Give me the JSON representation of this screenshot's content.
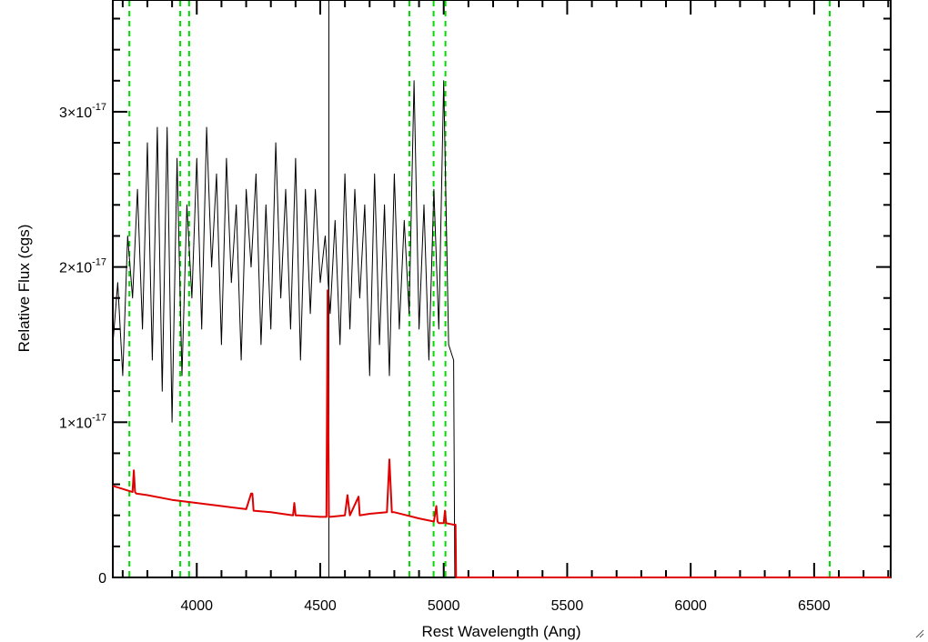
{
  "chart_data": {
    "type": "line",
    "xlabel": "Rest Wavelength (Ang)",
    "ylabel": "Relative Flux (cgs)",
    "xlim": [
      3660,
      6810
    ],
    "ylim": [
      0,
      3.72e-17
    ],
    "x_ticks": [
      4000,
      4500,
      5000,
      5500,
      6000,
      6500
    ],
    "x_tick_labels": [
      "4000",
      "4500",
      "5000",
      "5500",
      "6000",
      "6500"
    ],
    "y_ticks": [
      0,
      1e-17,
      2e-17,
      3e-17
    ],
    "y_tick_labels": [
      {
        "mantissa": "0",
        "exponent": ""
      },
      {
        "mantissa": "1×10",
        "exponent": "-17"
      },
      {
        "mantissa": "2×10",
        "exponent": "-17"
      },
      {
        "mantissa": "3×10",
        "exponent": "-17"
      }
    ],
    "grid": false,
    "series": [
      {
        "color": "#000000",
        "style": "solid",
        "x": [
          3660,
          3680,
          3700,
          3720,
          3740,
          3760,
          3780,
          3800,
          3820,
          3840,
          3860,
          3880,
          3900,
          3920,
          3940,
          3960,
          3980,
          4000,
          4020,
          4040,
          4060,
          4080,
          4100,
          4120,
          4140,
          4160,
          4180,
          4200,
          4220,
          4240,
          4260,
          4280,
          4300,
          4320,
          4340,
          4360,
          4380,
          4400,
          4420,
          4440,
          4460,
          4480,
          4500,
          4520,
          4540,
          4560,
          4580,
          4600,
          4620,
          4640,
          4660,
          4680,
          4700,
          4720,
          4740,
          4760,
          4780,
          4800,
          4820,
          4840,
          4860,
          4880,
          4900,
          4920,
          4940,
          4960,
          4980,
          5000,
          5020,
          5040,
          5045,
          5050,
          5100,
          5500,
          6000,
          6500,
          6810
        ],
        "values": [
          1.5e-17,
          1.9e-17,
          1.3e-17,
          2.2e-17,
          1.8e-17,
          2.5e-17,
          1.6e-17,
          2.8e-17,
          1.4e-17,
          2.9e-17,
          1.2e-17,
          2.9e-17,
          1e-17,
          2.7e-17,
          1.3e-17,
          2.4e-17,
          1.8e-17,
          2.7e-17,
          1.6e-17,
          2.9e-17,
          2e-17,
          2.6e-17,
          1.5e-17,
          2.7e-17,
          1.9e-17,
          2.4e-17,
          1.4e-17,
          2.5e-17,
          2e-17,
          2.6e-17,
          1.5e-17,
          2.4e-17,
          1.6e-17,
          2.8e-17,
          1.8e-17,
          2.5e-17,
          1.6e-17,
          2.7e-17,
          1.4e-17,
          2.5e-17,
          1.7e-17,
          2.5e-17,
          1.9e-17,
          2.2e-17,
          1.7e-17,
          2.3e-17,
          1.5e-17,
          2.6e-17,
          1.6e-17,
          2.5e-17,
          1.8e-17,
          2.4e-17,
          1.3e-17,
          2.6e-17,
          1.5e-17,
          2.4e-17,
          1.3e-17,
          2.6e-17,
          1.6e-17,
          2.3e-17,
          1.7e-17,
          3.2e-17,
          1.6e-17,
          2.4e-17,
          1.4e-17,
          2.5e-17,
          1.6e-17,
          3.2e-17,
          1.5e-17,
          1.4e-17,
          0,
          0,
          0,
          0,
          0,
          0,
          0
        ]
      },
      {
        "color": "#e00000",
        "style": "solid",
        "x": [
          3660,
          3700,
          3740,
          3745,
          3750,
          3755,
          3800,
          3900,
          4000,
          4100,
          4200,
          4220,
          4225,
          4230,
          4300,
          4390,
          4395,
          4400,
          4410,
          4500,
          4525,
          4530,
          4535,
          4540,
          4600,
          4610,
          4620,
          4655,
          4660,
          4700,
          4770,
          4780,
          4790,
          4800,
          4850,
          4900,
          4960,
          4970,
          4975,
          4980,
          5000,
          5005,
          5010,
          5040,
          5048,
          5050,
          5060,
          5500,
          6000,
          6500,
          6810
        ],
        "values": [
          5.9e-18,
          5.7e-18,
          5.5e-18,
          6.9e-18,
          5.5e-18,
          5.4e-18,
          5.3e-18,
          5e-18,
          4.8e-18,
          4.6e-18,
          4.4e-18,
          5.4e-18,
          5.4e-18,
          4.3e-18,
          4.2e-18,
          4e-18,
          4.8e-18,
          4e-18,
          4e-18,
          3.9e-18,
          3.9e-18,
          1.85e-17,
          3.9e-18,
          3.9e-18,
          4e-18,
          5.3e-18,
          4e-18,
          5.2e-18,
          4e-18,
          4.1e-18,
          4.2e-18,
          7.6e-18,
          4.2e-18,
          4.2e-18,
          4e-18,
          3.8e-18,
          3.6e-18,
          4.6e-18,
          3.6e-18,
          3.5e-18,
          3.5e-18,
          4.3e-18,
          3.5e-18,
          3.4e-18,
          3.4e-18,
          0,
          0,
          0,
          0,
          0,
          0
        ]
      }
    ],
    "vertical_lines": [
      {
        "x": 3727,
        "color": "#00dd00",
        "style": "dashed"
      },
      {
        "x": 3933,
        "color": "#00dd00",
        "style": "dashed"
      },
      {
        "x": 3969,
        "color": "#00dd00",
        "style": "dashed"
      },
      {
        "x": 4861,
        "color": "#00dd00",
        "style": "dashed"
      },
      {
        "x": 4959,
        "color": "#00dd00",
        "style": "dashed"
      },
      {
        "x": 5007,
        "color": "#00dd00",
        "style": "dashed"
      },
      {
        "x": 6563,
        "color": "#00dd00",
        "style": "dashed"
      },
      {
        "x": 4535,
        "color": "#000000",
        "style": "solid"
      }
    ]
  }
}
